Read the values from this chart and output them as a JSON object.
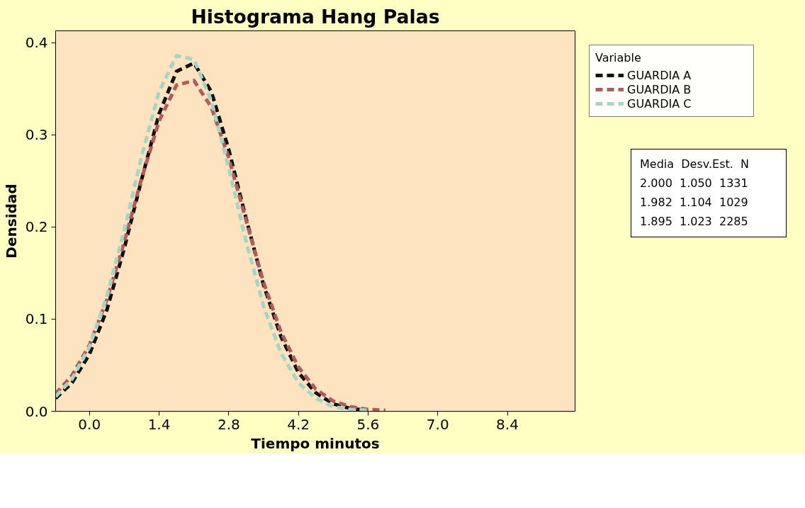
{
  "chart_data": {
    "type": "line",
    "title": "Histograma Hang Palas",
    "xlabel": "Tiempo minutos",
    "ylabel": "Densidad",
    "legend_title": "Variable",
    "x": [
      -0.68,
      -0.35,
      0,
      0.35,
      0.7,
      1.05,
      1.4,
      1.75,
      2.1,
      2.45,
      2.8,
      3.15,
      3.5,
      3.85,
      4.2,
      4.55,
      4.9,
      5.25,
      5.6,
      5.95
    ],
    "series": [
      {
        "name": "GUARDIA A",
        "color": "#111111",
        "values": [
          0.014,
          0.031,
          0.062,
          0.11,
          0.177,
          0.252,
          0.323,
          0.369,
          0.378,
          0.347,
          0.284,
          0.209,
          0.137,
          0.081,
          0.042,
          0.02,
          0.008,
          0.003,
          0.001,
          null
        ]
      },
      {
        "name": "GUARDIA B",
        "color": "#b55a5a",
        "values": [
          0.019,
          0.039,
          0.072,
          0.121,
          0.184,
          0.253,
          0.315,
          0.354,
          0.359,
          0.33,
          0.275,
          0.207,
          0.14,
          0.086,
          0.048,
          0.024,
          0.011,
          0.005,
          0.002,
          0.001
        ]
      },
      {
        "name": "GUARDIA C",
        "color": "#a3d6c4",
        "values": [
          0.016,
          0.035,
          0.07,
          0.125,
          0.197,
          0.277,
          0.347,
          0.386,
          0.382,
          0.337,
          0.264,
          0.184,
          0.114,
          0.063,
          0.031,
          0.014,
          0.005,
          0.002,
          0.001,
          null
        ]
      }
    ],
    "xlim": [
      -0.68,
      9.76
    ],
    "ylim": [
      0,
      0.413
    ],
    "xticks": [
      {
        "value": 0,
        "label": "0.0"
      },
      1.4,
      2.8,
      4.2,
      5.6,
      {
        "value": 7,
        "label": "7.0"
      },
      8.4
    ],
    "yticks": [
      {
        "value": 0,
        "label": "0.0"
      },
      0.1,
      0.2,
      0.3,
      0.4
    ],
    "grid": false,
    "legend": "right",
    "marker": "none",
    "line_style": "dashed",
    "annotations": [
      "Media  Desv.Est.  N",
      "2.000  1.050  1331",
      "1.982  1.104  1029",
      "1.895  1.023  2285"
    ]
  }
}
